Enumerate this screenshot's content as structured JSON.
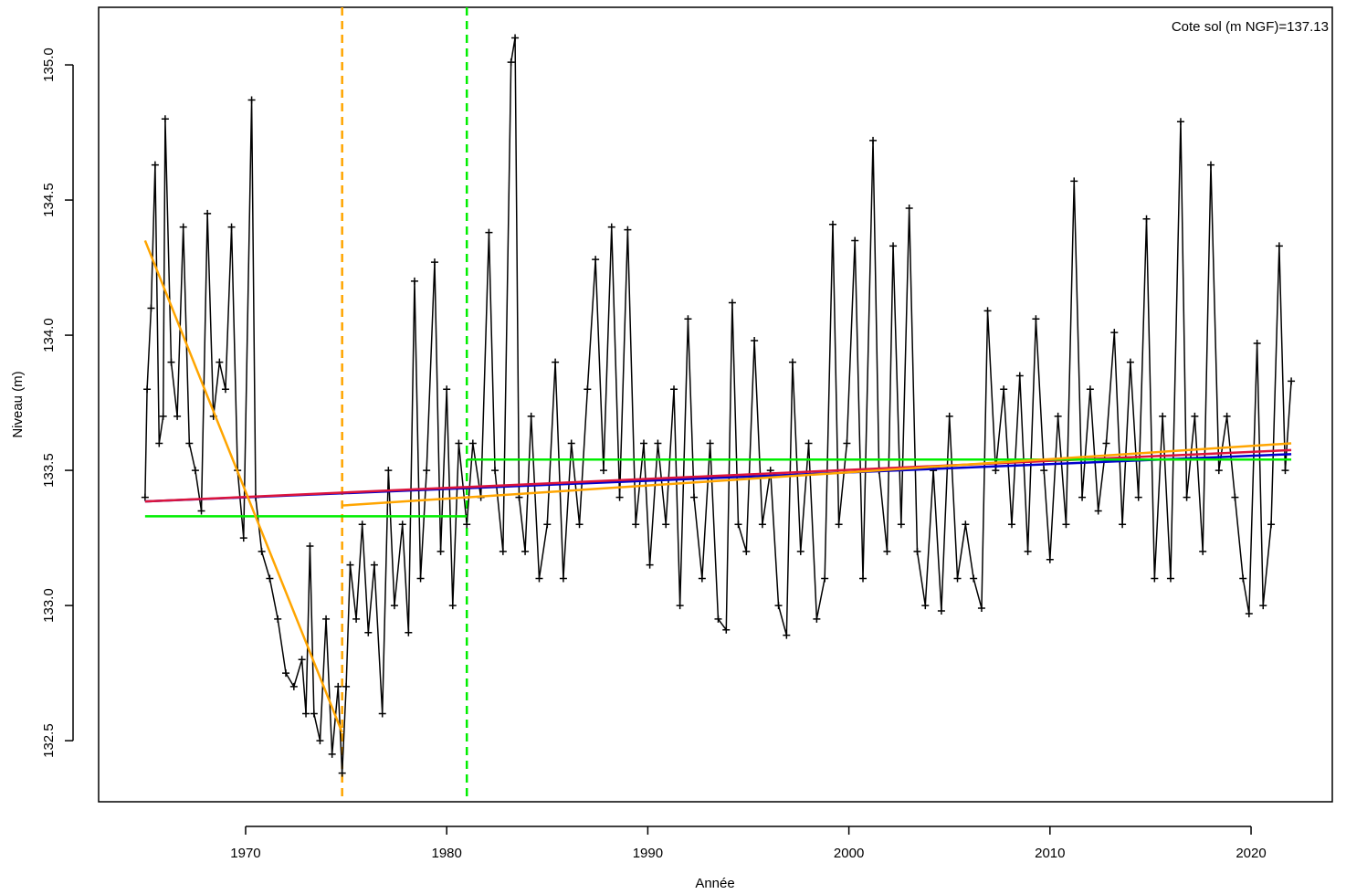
{
  "chart_data": {
    "type": "line",
    "annotation": "Cote sol (m NGF)=137.13",
    "x_label": "Année",
    "y_label": "Niveau (m)",
    "xlim": [
      1962.69,
      2024.04
    ],
    "ylim": [
      132.274,
      135.213
    ],
    "xticks": [
      1970,
      1980,
      1990,
      2000,
      2010,
      2020
    ],
    "yticks": [
      132.5,
      {
        "value": 133.0,
        "label": "133.0"
      },
      133.5,
      {
        "value": 134.0,
        "label": "134.0"
      },
      134.5,
      {
        "value": 135.0,
        "label": "135.0"
      }
    ],
    "series": [
      {
        "color": "#000000",
        "markers": true,
        "x": [
          1965.0,
          1965.1,
          1965.3,
          1965.5,
          1965.7,
          1965.9,
          1966.0,
          1966.3,
          1966.6,
          1966.9,
          1967.2,
          1967.5,
          1967.8,
          1968.1,
          1968.4,
          1968.7,
          1969.0,
          1969.3,
          1969.6,
          1969.9,
          1970.3,
          1970.5,
          1970.8,
          1971.2,
          1971.6,
          1972.0,
          1972.4,
          1972.8,
          1973.0,
          1973.2,
          1973.4,
          1973.7,
          1974.0,
          1974.3,
          1974.6,
          1974.8,
          1975.0,
          1975.2,
          1975.5,
          1975.8,
          1976.1,
          1976.4,
          1976.8,
          1977.1,
          1977.4,
          1977.8,
          1978.1,
          1978.4,
          1978.7,
          1979.0,
          1979.4,
          1979.7,
          1980.0,
          1980.3,
          1980.6,
          1981.0,
          1981.3,
          1981.7,
          1982.1,
          1982.4,
          1982.8,
          1983.2,
          1983.4,
          1983.6,
          1983.9,
          1984.2,
          1984.6,
          1985.0,
          1985.4,
          1985.8,
          1986.2,
          1986.6,
          1987.0,
          1987.4,
          1987.8,
          1988.2,
          1988.6,
          1989.0,
          1989.4,
          1989.8,
          1990.1,
          1990.5,
          1990.9,
          1991.3,
          1991.6,
          1992.0,
          1992.3,
          1992.7,
          1993.1,
          1993.5,
          1993.9,
          1994.2,
          1994.5,
          1994.9,
          1995.3,
          1995.7,
          1996.1,
          1996.5,
          1996.9,
          1997.2,
          1997.6,
          1998.0,
          1998.4,
          1998.8,
          1999.2,
          1999.5,
          1999.9,
          2000.3,
          2000.7,
          2001.2,
          2001.5,
          2001.9,
          2002.2,
          2002.6,
          2003.0,
          2003.4,
          2003.8,
          2004.2,
          2004.6,
          2005.0,
          2005.4,
          2005.8,
          2006.2,
          2006.6,
          2006.9,
          2007.3,
          2007.7,
          2008.1,
          2008.5,
          2008.9,
          2009.3,
          2009.7,
          2010.0,
          2010.4,
          2010.8,
          2011.2,
          2011.6,
          2012.0,
          2012.4,
          2012.8,
          2013.2,
          2013.6,
          2014.0,
          2014.4,
          2014.8,
          2015.2,
          2015.6,
          2016.0,
          2016.5,
          2016.8,
          2017.2,
          2017.6,
          2018.0,
          2018.4,
          2018.8,
          2019.2,
          2019.6,
          2019.9,
          2020.3,
          2020.6,
          2021.0,
          2021.4,
          2021.7,
          2022.0
        ],
        "values": [
          133.4,
          133.8,
          134.1,
          134.63,
          133.6,
          133.7,
          134.8,
          133.9,
          133.7,
          134.4,
          133.6,
          133.5,
          133.35,
          134.45,
          133.7,
          133.9,
          133.8,
          134.4,
          133.5,
          133.25,
          134.87,
          133.4,
          133.2,
          133.1,
          132.95,
          132.75,
          132.7,
          132.8,
          132.6,
          133.22,
          132.6,
          132.5,
          132.95,
          132.45,
          132.7,
          132.38,
          132.7,
          133.15,
          132.95,
          133.3,
          132.9,
          133.15,
          132.6,
          133.5,
          133.0,
          133.3,
          132.9,
          134.2,
          133.1,
          133.5,
          134.27,
          133.2,
          133.8,
          133.0,
          133.6,
          133.3,
          133.6,
          133.4,
          134.38,
          133.5,
          133.2,
          135.01,
          135.1,
          133.4,
          133.2,
          133.7,
          133.1,
          133.3,
          133.9,
          133.1,
          133.6,
          133.3,
          133.8,
          134.28,
          133.5,
          134.4,
          133.4,
          134.39,
          133.3,
          133.6,
          133.15,
          133.6,
          133.3,
          133.8,
          133.0,
          134.06,
          133.4,
          133.1,
          133.6,
          132.95,
          132.91,
          134.12,
          133.3,
          133.2,
          133.98,
          133.3,
          133.5,
          133.0,
          132.89,
          133.9,
          133.2,
          133.6,
          132.95,
          133.1,
          134.41,
          133.3,
          133.6,
          134.35,
          133.1,
          134.72,
          133.5,
          133.2,
          134.33,
          133.3,
          134.47,
          133.2,
          133.0,
          133.5,
          132.98,
          133.7,
          133.1,
          133.3,
          133.1,
          132.99,
          134.09,
          133.5,
          133.8,
          133.3,
          133.85,
          133.2,
          134.06,
          133.5,
          133.17,
          133.7,
          133.3,
          134.57,
          133.4,
          133.8,
          133.35,
          133.6,
          134.01,
          133.3,
          133.9,
          133.4,
          134.43,
          133.1,
          133.7,
          133.1,
          134.79,
          133.4,
          133.7,
          133.2,
          134.63,
          133.5,
          133.7,
          133.4,
          133.1,
          132.97,
          133.97,
          133.0,
          133.3,
          134.33,
          133.5,
          133.83
        ]
      },
      {
        "color": "#0000CD",
        "x": [
          1965,
          2022
        ],
        "values": [
          133.385,
          133.56
        ]
      },
      {
        "color": "#DC143C",
        "x": [
          1965,
          2022
        ],
        "values": [
          133.385,
          133.575
        ]
      },
      {
        "color": "#00EE00",
        "x": [
          1965,
          1981,
          1981,
          1981,
          2022
        ],
        "values": [
          133.33,
          133.33,
          null,
          133.54,
          133.54
        ]
      },
      {
        "color": "#FFA500",
        "x": [
          1965,
          1974.8,
          1974.8,
          1974.8,
          2022
        ],
        "values": [
          134.35,
          132.53,
          null,
          133.37,
          133.6
        ]
      }
    ],
    "vlines": [
      {
        "x": 1974.8,
        "color": "#FFA500"
      },
      {
        "x": 1981.0,
        "color": "#00EE00"
      }
    ]
  }
}
